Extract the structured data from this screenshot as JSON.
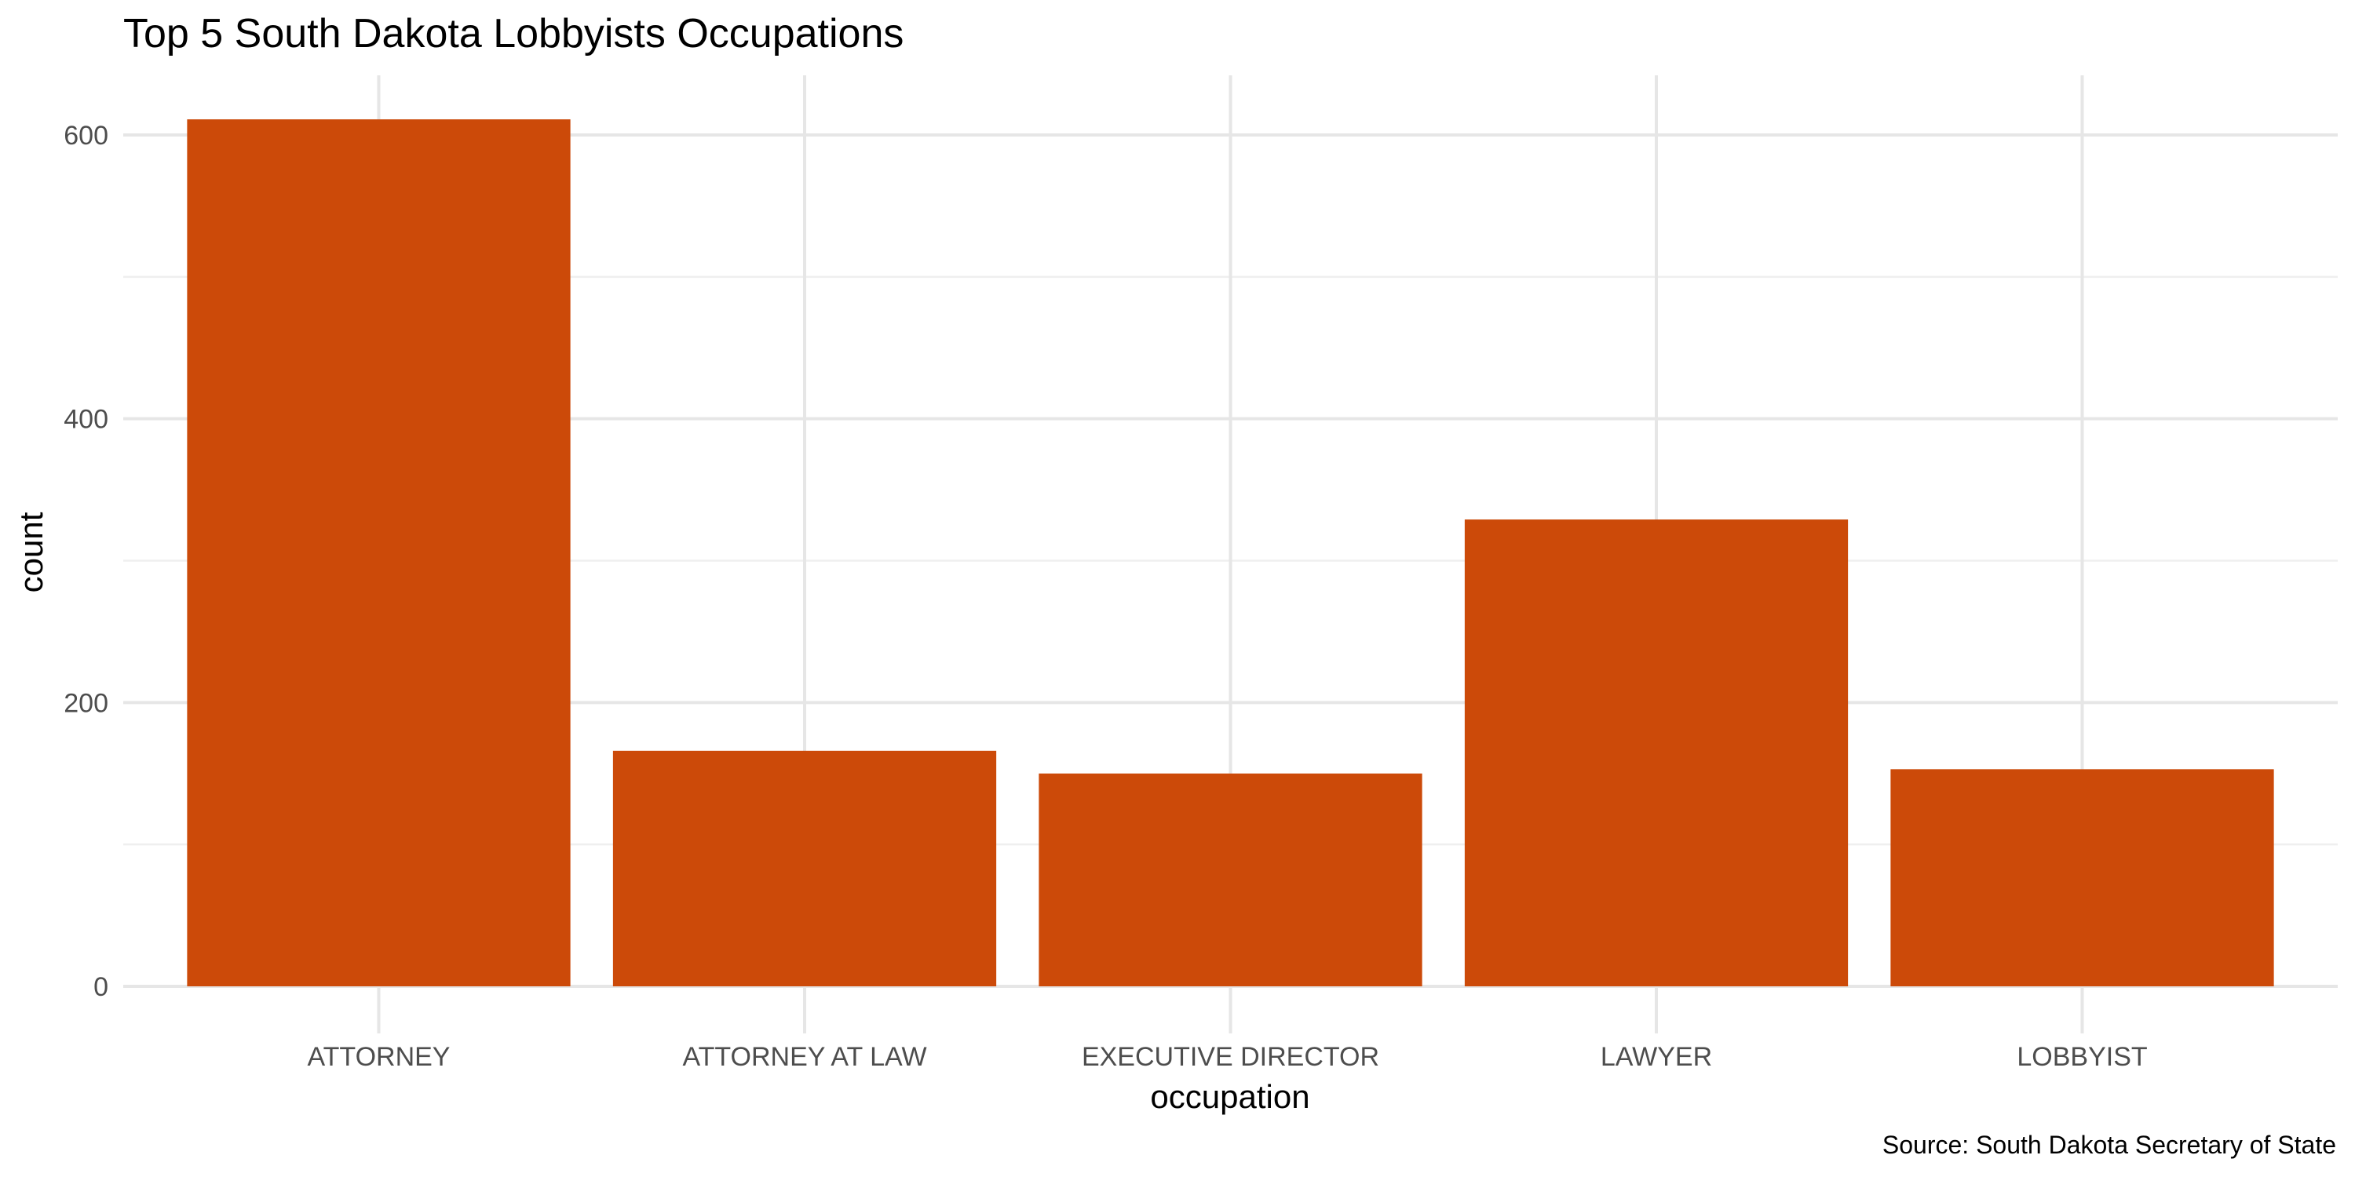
{
  "chart_data": {
    "type": "bar",
    "title": "Top 5 South Dakota Lobbyists Occupations",
    "xlabel": "occupation",
    "ylabel": "count",
    "caption": "Source: South Dakota Secretary of State",
    "categories": [
      "ATTORNEY",
      "ATTORNEY AT LAW",
      "EXECUTIVE DIRECTOR",
      "LAWYER",
      "LOBBYIST"
    ],
    "values": [
      611,
      166,
      150,
      329,
      153
    ],
    "yticks": [
      0,
      200,
      400,
      600
    ],
    "ylim": [
      0,
      640
    ],
    "bar_color": "#CC4A09",
    "grid": true,
    "legend": "none"
  }
}
